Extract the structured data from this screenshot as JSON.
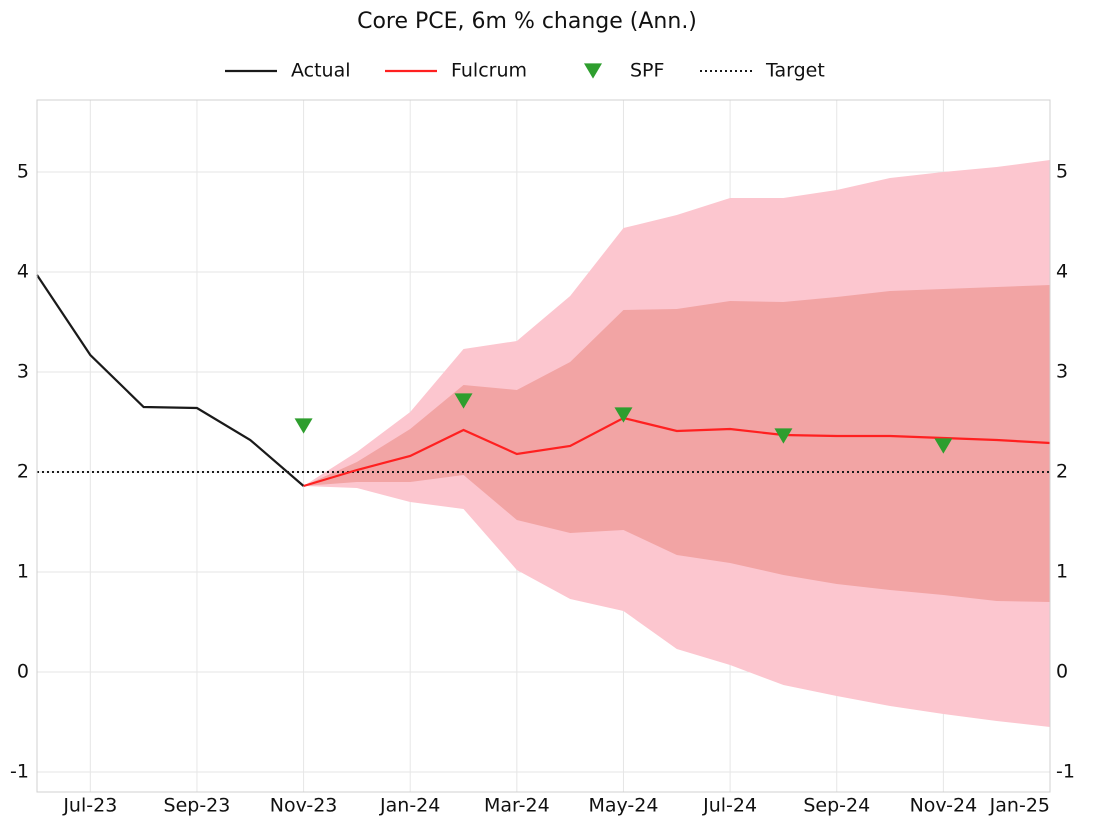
{
  "chart_data": {
    "type": "line",
    "title": "Core PCE, 6m % change (Ann.)",
    "categories": [
      null,
      "Jul-23",
      null,
      "Sep-23",
      null,
      "Nov-23",
      null,
      "Jan-24",
      null,
      "Mar-24",
      null,
      "May-24",
      null,
      "Jul-24",
      null,
      "Sep-24",
      null,
      "Nov-24",
      null,
      "Jan-25"
    ],
    "series": [
      {
        "name": "Actual",
        "color": "#1a1a1a",
        "style": "solid",
        "values": [
          3.97,
          3.17,
          2.65,
          2.64,
          2.32,
          1.86,
          null,
          null,
          null,
          null,
          null,
          null,
          null,
          null,
          null,
          null,
          null,
          null,
          null,
          null
        ]
      },
      {
        "name": "Fulcrum",
        "color": "#ff2020",
        "style": "solid",
        "values": [
          null,
          null,
          null,
          null,
          null,
          1.86,
          2.02,
          2.16,
          2.42,
          2.18,
          2.26,
          2.54,
          2.41,
          2.43,
          2.37,
          2.36,
          2.36,
          2.34,
          2.32,
          2.29
        ]
      },
      {
        "name": "SPF",
        "color": "#2e9e2e",
        "style": "marker",
        "values": [
          null,
          null,
          null,
          null,
          null,
          2.46,
          null,
          null,
          2.71,
          null,
          null,
          2.57,
          null,
          null,
          2.36,
          null,
          null,
          2.26,
          null,
          null
        ]
      },
      {
        "name": "Target",
        "color": "#1a1a1a",
        "style": "dotted",
        "values": [
          2,
          2,
          2,
          2,
          2,
          2,
          2,
          2,
          2,
          2,
          2,
          2,
          2,
          2,
          2,
          2,
          2,
          2,
          2,
          2
        ]
      }
    ],
    "bands": [
      {
        "color": "#fcc6cf",
        "upper": [
          null,
          null,
          null,
          null,
          null,
          1.86,
          2.2,
          2.6,
          3.23,
          3.31,
          3.76,
          4.44,
          4.57,
          4.74,
          4.74,
          4.82,
          4.94,
          5.0,
          5.05,
          5.12
        ],
        "lower": [
          null,
          null,
          null,
          null,
          null,
          1.86,
          1.84,
          1.7,
          1.63,
          1.02,
          0.73,
          0.61,
          0.23,
          0.07,
          -0.13,
          -0.24,
          -0.34,
          -0.42,
          -0.49,
          -0.55
        ]
      },
      {
        "color": "#f2a4a4",
        "upper": [
          null,
          null,
          null,
          null,
          null,
          1.86,
          2.1,
          2.43,
          2.87,
          2.82,
          3.1,
          3.62,
          3.63,
          3.71,
          3.7,
          3.75,
          3.81,
          3.83,
          3.85,
          3.87
        ],
        "lower": [
          null,
          null,
          null,
          null,
          null,
          1.86,
          1.9,
          1.9,
          1.97,
          1.52,
          1.39,
          1.42,
          1.17,
          1.09,
          0.97,
          0.88,
          0.82,
          0.77,
          0.71,
          0.7
        ]
      }
    ],
    "ylim": [
      -1.2,
      5.72
    ],
    "yticks": [
      -1,
      0,
      1,
      2,
      3,
      4,
      5
    ],
    "y2lim": [
      -1.2,
      5.72
    ],
    "y2ticks": [
      -1,
      0,
      1,
      2,
      3,
      4,
      5
    ],
    "grid": true,
    "legend": "top"
  }
}
